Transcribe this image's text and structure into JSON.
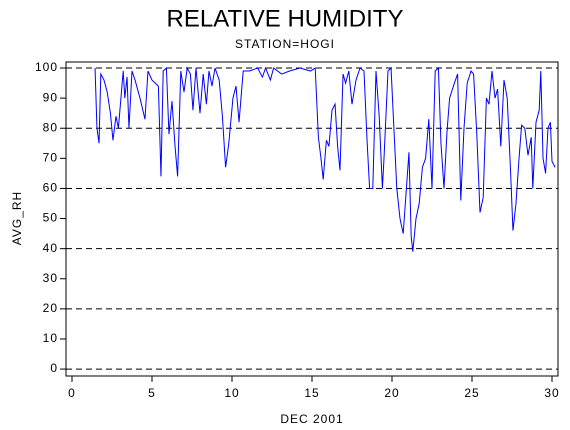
{
  "chart_data": {
    "type": "line",
    "title": "RELATIVE HUMIDITY",
    "subtitle": "STATION=HOGI",
    "ylabel": "AVG_RH",
    "xlabel": "DEC 2001",
    "xlim": [
      -0.375,
      30.375
    ],
    "ylim": [
      -2.3,
      102
    ],
    "xticks": [
      0,
      5,
      10,
      15,
      20,
      25,
      30
    ],
    "yticks": [
      0,
      10,
      20,
      30,
      40,
      50,
      60,
      70,
      80,
      90,
      100
    ],
    "gridlines": [
      0,
      20,
      40,
      60,
      80,
      100
    ],
    "series": [
      {
        "color": "#0000ff",
        "x": [
          1.44,
          1.56,
          1.69,
          1.8,
          2.0,
          2.2,
          2.4,
          2.56,
          2.75,
          2.9,
          3.2,
          3.3,
          3.44,
          3.56,
          3.75,
          3.94,
          4.25,
          4.56,
          4.75,
          5.0,
          5.4,
          5.56,
          5.7,
          5.9,
          6.06,
          6.25,
          6.44,
          6.6,
          6.8,
          7.0,
          7.2,
          7.4,
          7.56,
          7.75,
          8.0,
          8.2,
          8.4,
          8.56,
          8.75,
          8.94,
          9.2,
          9.4,
          9.6,
          9.8,
          10.06,
          10.25,
          10.44,
          10.7,
          11.1,
          11.6,
          11.9,
          12.1,
          12.4,
          12.6,
          13.1,
          13.6,
          14.25,
          14.9,
          15.2,
          15.4,
          15.56,
          15.7,
          15.9,
          16.06,
          16.25,
          16.44,
          16.6,
          16.75,
          16.94,
          17.1,
          17.3,
          17.5,
          17.75,
          18.0,
          18.25,
          18.44,
          18.6,
          18.8,
          19.0,
          19.2,
          19.4,
          19.5,
          19.75,
          19.94,
          20.1,
          20.3,
          20.5,
          20.7,
          20.9,
          21.06,
          21.2,
          21.3,
          21.5,
          21.7,
          21.9,
          22.1,
          22.3,
          22.5,
          22.7,
          22.9,
          23.06,
          23.25,
          23.44,
          23.6,
          23.9,
          24.1,
          24.3,
          24.5,
          24.7,
          24.94,
          25.1,
          25.3,
          25.5,
          25.7,
          25.9,
          26.06,
          26.25,
          26.44,
          26.6,
          26.8,
          27.0,
          27.2,
          27.4,
          27.56,
          27.75,
          27.94,
          28.1,
          28.3,
          28.5,
          28.7,
          28.8,
          29.0,
          29.2,
          29.3,
          29.44,
          29.6,
          29.75,
          29.9,
          30.0,
          30.2
        ],
        "values": [
          100,
          80,
          75,
          98,
          96,
          92,
          85,
          76,
          84,
          80,
          99,
          90,
          97,
          80,
          99,
          96,
          90,
          83,
          99,
          96,
          94,
          64,
          99,
          100,
          78,
          89,
          74,
          64,
          99,
          92,
          100,
          98,
          86,
          100,
          85,
          98,
          88,
          99,
          94,
          100,
          96,
          84,
          67,
          75,
          90,
          94,
          82,
          99,
          99,
          100,
          97,
          100,
          96,
          100,
          98,
          99,
          100,
          99,
          100,
          77,
          70,
          63,
          76,
          74,
          86,
          88,
          74,
          66,
          98,
          95,
          99,
          88,
          96,
          100,
          99,
          76,
          60,
          60,
          99,
          84,
          60,
          70,
          99,
          100,
          82,
          60,
          50,
          45,
          60,
          72,
          44,
          39,
          50,
          55,
          67,
          70,
          83,
          60,
          99,
          100,
          75,
          60,
          79,
          90,
          95,
          98,
          56,
          80,
          95,
          99,
          98,
          78,
          52,
          57,
          90,
          88,
          99,
          90,
          93,
          74,
          96,
          90,
          67,
          46,
          55,
          70,
          81,
          80,
          71,
          77,
          60,
          82,
          86,
          99,
          70,
          65,
          80,
          82,
          69,
          67
        ]
      }
    ]
  }
}
